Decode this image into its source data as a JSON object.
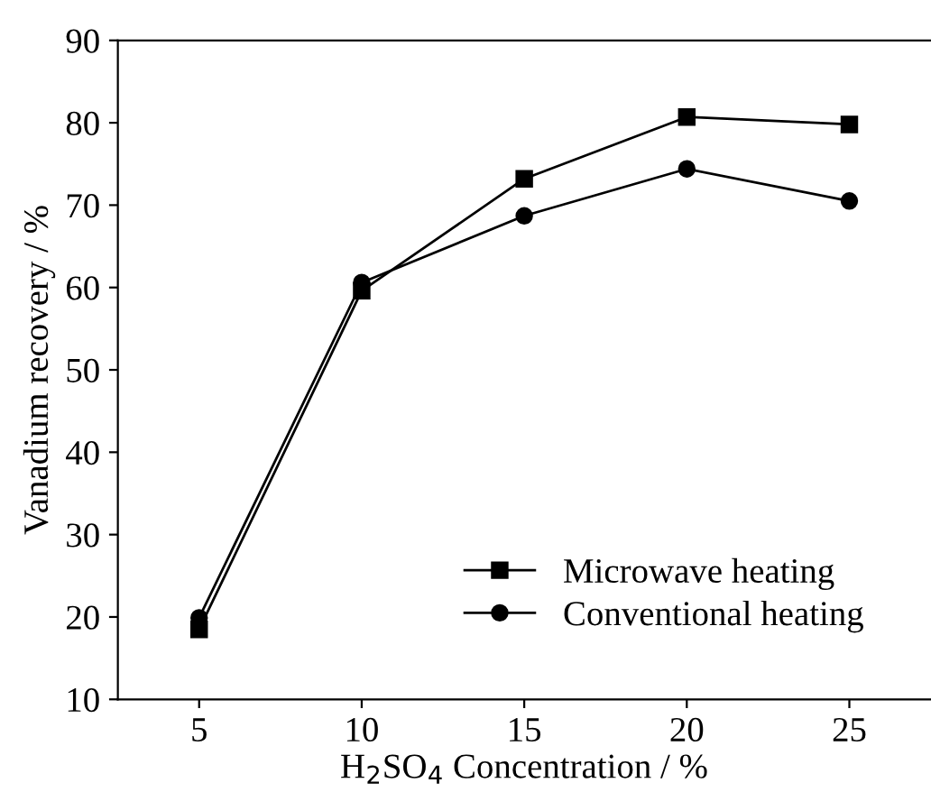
{
  "chart_data": {
    "type": "line",
    "xlabel": "H$_{2}$SO$_{4}$ Concentration / %",
    "ylabel": "Vanadium recovery / %",
    "x": [
      5,
      10,
      15,
      20,
      25
    ],
    "series": [
      {
        "name": "Microwave heating",
        "color": "#000000",
        "marker": "square",
        "values": [
          18.5,
          59.6,
          73.2,
          80.7,
          79.8
        ]
      },
      {
        "name": "Conventional heating",
        "color": "#000000",
        "marker": "circle",
        "values": [
          19.9,
          60.6,
          68.7,
          74.4,
          70.5
        ]
      }
    ],
    "xlim": [
      2.5,
      27.5
    ],
    "xticks": [
      5,
      10,
      15,
      20,
      25
    ],
    "ylim": [
      10,
      90
    ],
    "yticks": [
      10,
      20,
      30,
      40,
      50,
      60,
      70,
      80,
      90
    ],
    "grid": false,
    "legend": "bottom right",
    "line_style": "solid"
  }
}
